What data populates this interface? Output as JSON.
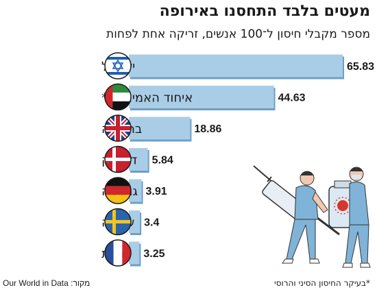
{
  "header": {
    "title": "מעטים בלבד התחסנו באירופה",
    "subtitle": "מספר מקבלי חיסון ל־100 אנשים, זריקה אחת לפחות"
  },
  "chart_data": {
    "type": "bar",
    "orientation": "horizontal",
    "title": "מעטים בלבד התחסנו באירופה",
    "subtitle": "מספר מקבלי חיסון ל־100 אנשים, זריקה אחת לפחות",
    "xlabel": "",
    "ylabel": "",
    "xlim": [
      0,
      65.83
    ],
    "grid": false,
    "categories": [
      "ישראל",
      "איחוד האמירויות*",
      "בריטניה",
      "דנמרק",
      "גרמניה",
      "שוודיה",
      "צרפת"
    ],
    "values": [
      65.83,
      44.63,
      18.86,
      5.84,
      3.91,
      3.4,
      3.25
    ],
    "value_labels": [
      "65.83",
      "44.63",
      "18.86",
      "5.84",
      "3.91",
      "3.4",
      "3.25"
    ],
    "flags": [
      "israel-flag",
      "uae-flag",
      "uk-flag",
      "denmark-flag",
      "germany-flag",
      "sweden-flag",
      "france-flag"
    ],
    "bar_color": "#a9cde6",
    "bar_shadow_color": "#6f9fc4"
  },
  "footer": {
    "footnote": "*בעיקר החיסון הסיני והרוסי",
    "source_label": "מקור:",
    "source_name": "Our World in Data"
  },
  "illustration": {
    "icon": "health-workers-with-syringe-and-vaccine-vial",
    "colors": {
      "scrubs": "#7fb3d8",
      "mask": "#dbe9f4",
      "virus": "#d9362b"
    }
  }
}
